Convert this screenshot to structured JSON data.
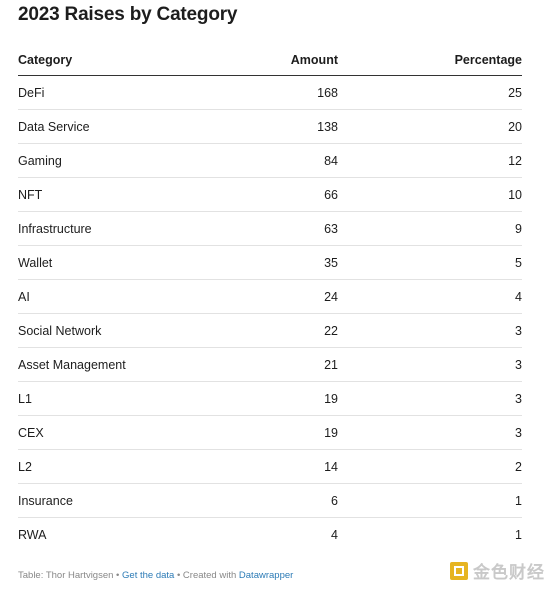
{
  "title": "2023 Raises by Category",
  "table": {
    "headers": {
      "category": "Category",
      "amount": "Amount",
      "percentage": "Percentage"
    },
    "rows": [
      {
        "category": "DeFi",
        "amount": "168",
        "percentage": "25"
      },
      {
        "category": "Data Service",
        "amount": "138",
        "percentage": "20"
      },
      {
        "category": "Gaming",
        "amount": "84",
        "percentage": "12"
      },
      {
        "category": "NFT",
        "amount": "66",
        "percentage": "10"
      },
      {
        "category": "Infrastructure",
        "amount": "63",
        "percentage": "9"
      },
      {
        "category": "Wallet",
        "amount": "35",
        "percentage": "5"
      },
      {
        "category": "AI",
        "amount": "24",
        "percentage": "4"
      },
      {
        "category": "Social Network",
        "amount": "22",
        "percentage": "3"
      },
      {
        "category": "Asset Management",
        "amount": "21",
        "percentage": "3"
      },
      {
        "category": "L1",
        "amount": "19",
        "percentage": "3"
      },
      {
        "category": "CEX",
        "amount": "19",
        "percentage": "3"
      },
      {
        "category": "L2",
        "amount": "14",
        "percentage": "2"
      },
      {
        "category": "Insurance",
        "amount": "6",
        "percentage": "1"
      },
      {
        "category": "RWA",
        "amount": "4",
        "percentage": "1"
      }
    ]
  },
  "footer": {
    "source": "Table: Thor Hartvigsen",
    "separator": " • ",
    "get_data_link": "Get the data",
    "created_with": "Created with",
    "tool_link": "Datawrapper"
  },
  "watermark": {
    "text": "金色财经",
    "logo_icon": "golden-square-logo-icon"
  },
  "colors": {
    "text": "#1d1d1d",
    "header_rule": "#333333",
    "row_rule": "#e2e2e2",
    "footer_text": "#888888",
    "link": "#2c7bb6",
    "watermark_gold": "#e6b422"
  }
}
